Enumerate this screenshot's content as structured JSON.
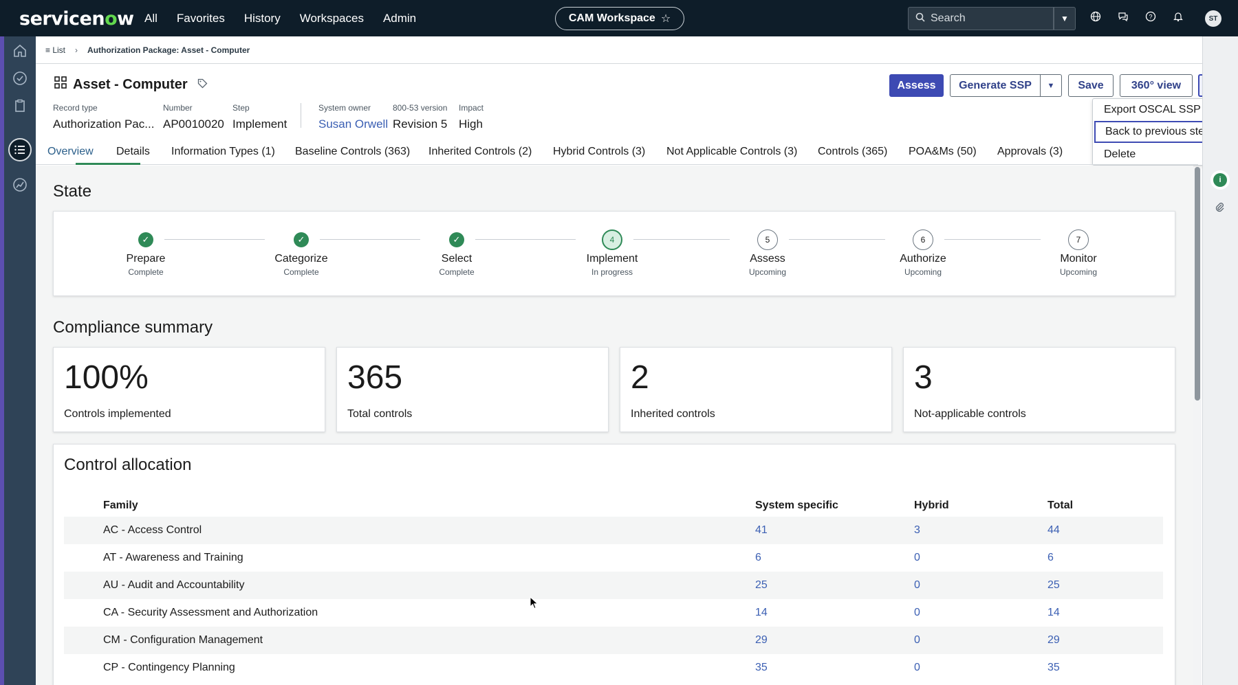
{
  "topbar": {
    "logo": "servicenow",
    "nav": [
      "All",
      "Favorites",
      "History",
      "Workspaces",
      "Admin"
    ],
    "workspace": "CAM Workspace",
    "search_placeholder": "Search",
    "avatar_initials": "ST"
  },
  "breadcrumb": {
    "list": "List",
    "current": "Authorization Package: Asset - Computer"
  },
  "record": {
    "title": "Asset - Computer",
    "fields": [
      {
        "label": "Record type",
        "value": "Authorization Pac..."
      },
      {
        "label": "Number",
        "value": "AP0010020"
      },
      {
        "label": "Step",
        "value": "Implement"
      },
      {
        "label": "System owner",
        "value": "Susan Orwell"
      },
      {
        "label": "800-53 version",
        "value": "Revision 5"
      },
      {
        "label": "Impact",
        "value": "High"
      }
    ]
  },
  "actions": {
    "assess": "Assess",
    "generate_ssp": "Generate SSP",
    "save": "Save",
    "view360": "360° view",
    "more": "···"
  },
  "menu": [
    "Export OSCAL SSP",
    "Back to previous step",
    "Delete"
  ],
  "tabs": [
    "Overview",
    "Details",
    "Information Types (1)",
    "Baseline Controls (363)",
    "Inherited Controls (2)",
    "Hybrid Controls (3)",
    "Not Applicable Controls (3)",
    "Controls (365)",
    "POA&Ms (50)",
    "Approvals (3)"
  ],
  "state": {
    "title": "State",
    "steps": [
      {
        "num": "1",
        "name": "Prepare",
        "status": "Complete"
      },
      {
        "num": "2",
        "name": "Categorize",
        "status": "Complete"
      },
      {
        "num": "3",
        "name": "Select",
        "status": "Complete"
      },
      {
        "num": "4",
        "name": "Implement",
        "status": "In progress"
      },
      {
        "num": "5",
        "name": "Assess",
        "status": "Upcoming"
      },
      {
        "num": "6",
        "name": "Authorize",
        "status": "Upcoming"
      },
      {
        "num": "7",
        "name": "Monitor",
        "status": "Upcoming"
      }
    ]
  },
  "compliance": {
    "title": "Compliance summary",
    "kpis": [
      {
        "value": "100%",
        "label": "Controls implemented"
      },
      {
        "value": "365",
        "label": "Total controls"
      },
      {
        "value": "2",
        "label": "Inherited controls"
      },
      {
        "value": "3",
        "label": "Not-applicable controls"
      }
    ]
  },
  "allocation": {
    "title": "Control allocation",
    "headers": [
      "Family",
      "System specific",
      "Hybrid",
      "Total"
    ],
    "rows": [
      {
        "family": "AC - Access Control",
        "system": "41",
        "hybrid": "3",
        "total": "44"
      },
      {
        "family": "AT - Awareness and Training",
        "system": "6",
        "hybrid": "0",
        "total": "6"
      },
      {
        "family": "AU - Audit and Accountability",
        "system": "25",
        "hybrid": "0",
        "total": "25"
      },
      {
        "family": "CA - Security Assessment and Authorization",
        "system": "14",
        "hybrid": "0",
        "total": "14"
      },
      {
        "family": "CM - Configuration Management",
        "system": "29",
        "hybrid": "0",
        "total": "29"
      },
      {
        "family": "CP - Contingency Planning",
        "system": "35",
        "hybrid": "0",
        "total": "35"
      }
    ]
  },
  "colors": {
    "primary": "#3d4ab3",
    "success": "#2f8a57",
    "topbar": "#0e1d29",
    "link": "#3b5fb3"
  }
}
